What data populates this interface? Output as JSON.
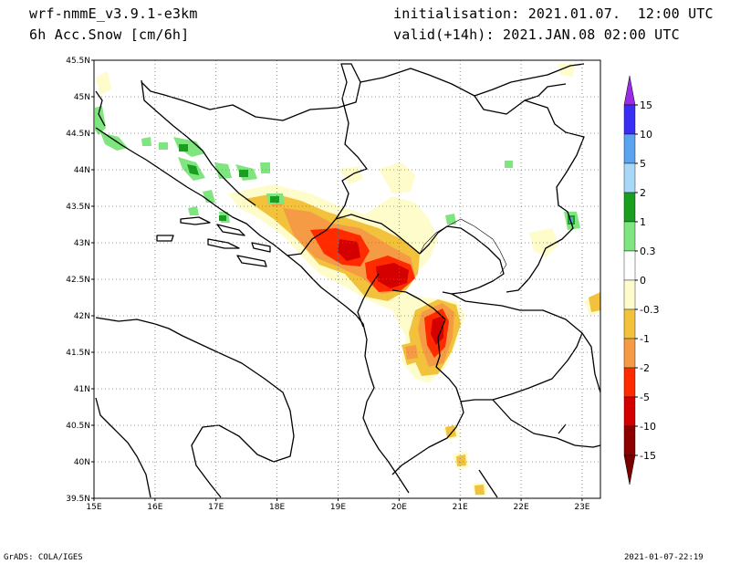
{
  "header": {
    "model": "wrf-nmmE_v3.9.1-e3km",
    "field": "6h Acc.Snow [cm/6h]",
    "init": "initialisation: 2021.01.07.  12:00 UTC",
    "valid": "valid(+14h): 2021.JAN.08 02:00 UTC"
  },
  "footer": {
    "credit": "GrADS: COLA/IGES",
    "timestamp": "2021-01-07-22:19"
  },
  "map": {
    "lon_labels": [
      "15E",
      "16E",
      "17E",
      "18E",
      "19E",
      "20E",
      "21E",
      "22E",
      "23E"
    ],
    "lat_labels": [
      "45.5N",
      "45N",
      "44.5N",
      "44N",
      "43.5N",
      "43N",
      "42.5N",
      "42N",
      "41.5N",
      "41N",
      "40.5N",
      "40N",
      "39.5N"
    ],
    "lon_range": [
      15,
      23.3
    ],
    "lat_range": [
      39.5,
      45.5
    ],
    "grid": "dotted"
  },
  "colorbar": {
    "labels": [
      "15",
      "10",
      "5",
      "2",
      "1",
      "0.3",
      "0",
      "-0.3",
      "-1",
      "-2",
      "-5",
      "-10",
      "-15"
    ],
    "colors": [
      "#3a2ef5",
      "#5aa3ee",
      "#a8d8f5",
      "#199e1f",
      "#7fe57f",
      "#ffffff",
      "#fffccc",
      "#f2c23c",
      "#f59a45",
      "#ff2a00",
      "#d40000",
      "#8c0000"
    ],
    "top_color": "#9a2ce6",
    "bottom_color": "#7a0000"
  },
  "colors": {
    "light": "#fffccc",
    "yellow": "#f2c23c",
    "orange": "#f59a45",
    "red": "#ff2a00",
    "darkred": "#d40000",
    "green": "#7fe57f",
    "darkgreen": "#199e1f",
    "blue": "#5aa3ee"
  }
}
